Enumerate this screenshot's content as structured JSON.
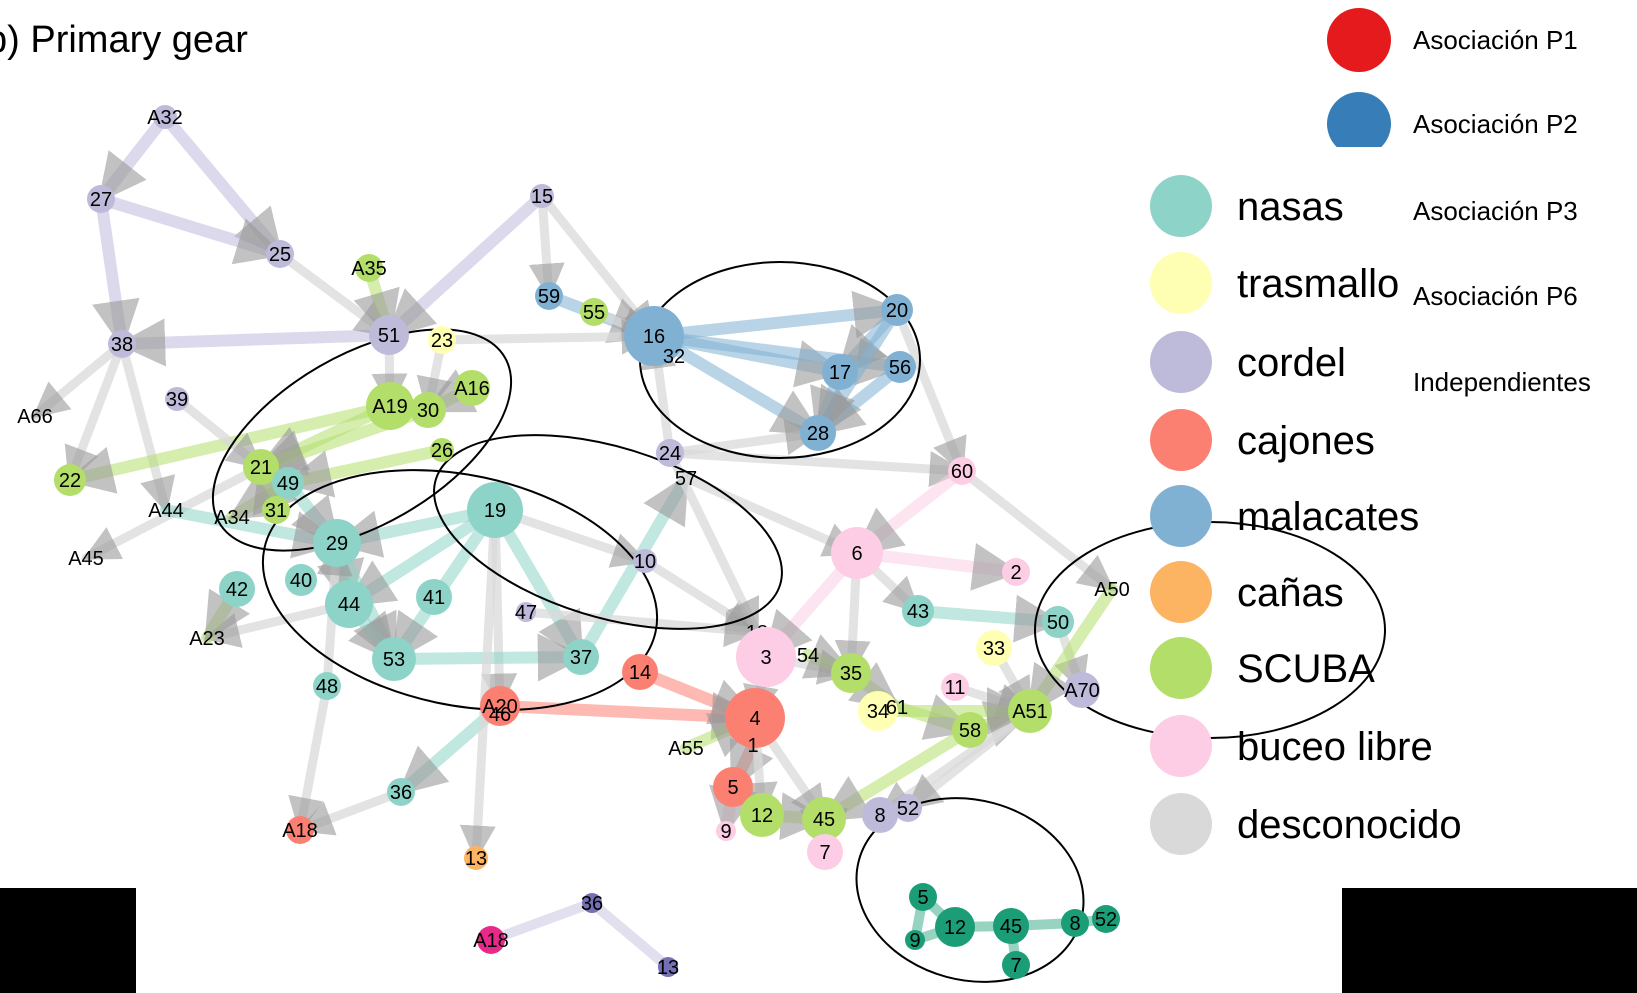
{
  "title": "b) Primary gear",
  "colors": {
    "nasas": "#8dd3c7",
    "trasmallo": "#ffffb3",
    "cordel": "#bebada",
    "cajones": "#fb8072",
    "malacates": "#80b1d3",
    "canas": "#fdb462",
    "scuba": "#b3de69",
    "buceo": "#fccde5",
    "desconocido": "#d9d9d9",
    "assocP1": "#e41a1c",
    "assocP2": "#377eb8",
    "darkgreen": "#1b9e77",
    "magenta": "#e7298a",
    "darkpurple": "#7570b3"
  },
  "assoc_legend": [
    {
      "label": "Asociación P1",
      "color": "#e41a1c"
    },
    {
      "label": "Asociación P2",
      "color": "#377eb8"
    },
    {
      "label": "Asociación P3"
    },
    {
      "label": "Asociación P6"
    },
    {
      "label": "Independientes"
    }
  ],
  "gear_legend": [
    {
      "label": "nasas",
      "color": "#8dd3c7"
    },
    {
      "label": "trasmallo",
      "color": "#ffffb3"
    },
    {
      "label": "cordel",
      "color": "#bebada"
    },
    {
      "label": "cajones",
      "color": "#fb8072"
    },
    {
      "label": "malacates",
      "color": "#80b1d3"
    },
    {
      "label": "cañas",
      "color": "#fdb462"
    },
    {
      "label": "SCUBA",
      "color": "#b3de69"
    },
    {
      "label": "buceo libre",
      "color": "#fccde5"
    },
    {
      "label": "desconocido",
      "color": "#d9d9d9"
    }
  ],
  "nodes": [
    {
      "id": "A32",
      "gear": "cordel"
    },
    {
      "id": "27",
      "gear": "cordel"
    },
    {
      "id": "25",
      "gear": "cordel"
    },
    {
      "id": "15",
      "gear": "cordel"
    },
    {
      "id": "A35",
      "gear": "scuba"
    },
    {
      "id": "59",
      "gear": "malacates"
    },
    {
      "id": "55",
      "gear": "scuba"
    },
    {
      "id": "38",
      "gear": "cordel"
    },
    {
      "id": "51",
      "gear": "cordel"
    },
    {
      "id": "23",
      "gear": "trasmallo"
    },
    {
      "id": "16",
      "gear": "malacates"
    },
    {
      "id": "32",
      "gear": "malacates"
    },
    {
      "id": "20",
      "gear": "malacates"
    },
    {
      "id": "17",
      "gear": "malacates"
    },
    {
      "id": "56",
      "gear": "malacates"
    },
    {
      "id": "28",
      "gear": "malacates"
    },
    {
      "id": "39",
      "gear": "cordel"
    },
    {
      "id": "A66",
      "gear": "desconocido"
    },
    {
      "id": "A19",
      "gear": "scuba"
    },
    {
      "id": "30",
      "gear": "scuba"
    },
    {
      "id": "A16",
      "gear": "scuba"
    },
    {
      "id": "26",
      "gear": "scuba"
    },
    {
      "id": "24",
      "gear": "cordel"
    },
    {
      "id": "57",
      "gear": "nasas"
    },
    {
      "id": "60",
      "gear": "buceo"
    },
    {
      "id": "22",
      "gear": "scuba"
    },
    {
      "id": "21",
      "gear": "scuba"
    },
    {
      "id": "49",
      "gear": "nasas"
    },
    {
      "id": "A44",
      "gear": "nasas"
    },
    {
      "id": "A34",
      "gear": "scuba"
    },
    {
      "id": "31",
      "gear": "scuba"
    },
    {
      "id": "19",
      "gear": "nasas"
    },
    {
      "id": "6",
      "gear": "buceo"
    },
    {
      "id": "A45",
      "gear": "trasmallo"
    },
    {
      "id": "29",
      "gear": "nasas"
    },
    {
      "id": "10",
      "gear": "cordel"
    },
    {
      "id": "2",
      "gear": "buceo"
    },
    {
      "id": "42",
      "gear": "nasas"
    },
    {
      "id": "40",
      "gear": "nasas"
    },
    {
      "id": "44",
      "gear": "nasas"
    },
    {
      "id": "41",
      "gear": "nasas"
    },
    {
      "id": "47",
      "gear": "cordel"
    },
    {
      "id": "43",
      "gear": "nasas"
    },
    {
      "id": "A50",
      "gear": "scuba"
    },
    {
      "id": "50",
      "gear": "nasas"
    },
    {
      "id": "A23",
      "gear": "scuba"
    },
    {
      "id": "18",
      "gear": "scuba"
    },
    {
      "id": "3",
      "gear": "buceo"
    },
    {
      "id": "54",
      "gear": "scuba"
    },
    {
      "id": "33",
      "gear": "trasmallo"
    },
    {
      "id": "53",
      "gear": "nasas"
    },
    {
      "id": "37",
      "gear": "nasas"
    },
    {
      "id": "14",
      "gear": "cajones"
    },
    {
      "id": "35",
      "gear": "scuba"
    },
    {
      "id": "11",
      "gear": "buceo"
    },
    {
      "id": "A70",
      "gear": "cordel"
    },
    {
      "id": "48",
      "gear": "nasas"
    },
    {
      "id": "A20",
      "gear": "cajones"
    },
    {
      "id": "46",
      "gear": "cajones"
    },
    {
      "id": "34",
      "gear": "trasmallo"
    },
    {
      "id": "61",
      "gear": "scuba"
    },
    {
      "id": "A51",
      "gear": "scuba"
    },
    {
      "id": "4",
      "gear": "cajones"
    },
    {
      "id": "58",
      "gear": "scuba"
    },
    {
      "id": "A55",
      "gear": "scuba"
    },
    {
      "id": "1",
      "gear": "cajones"
    },
    {
      "id": "36",
      "gear": "nasas"
    },
    {
      "id": "5",
      "gear": "cajones"
    },
    {
      "id": "8",
      "gear": "cordel"
    },
    {
      "id": "52",
      "gear": "cordel"
    },
    {
      "id": "A18",
      "gear": "cajones"
    },
    {
      "id": "12",
      "gear": "scuba"
    },
    {
      "id": "45",
      "gear": "scuba"
    },
    {
      "id": "9",
      "gear": "buceo"
    },
    {
      "id": "7",
      "gear": "buceo"
    },
    {
      "id": "13",
      "gear": "canas"
    },
    {
      "id": "36",
      "gear": "darkpurple"
    },
    {
      "id": "A18",
      "gear": "magenta"
    },
    {
      "id": "13",
      "gear": "darkpurple"
    },
    {
      "id": "5",
      "gear": "darkgreen"
    },
    {
      "id": "12",
      "gear": "darkgreen"
    },
    {
      "id": "45",
      "gear": "darkgreen"
    },
    {
      "id": "9",
      "gear": "darkgreen"
    },
    {
      "id": "8",
      "gear": "darkgreen"
    },
    {
      "id": "52",
      "gear": "darkgreen"
    },
    {
      "id": "7",
      "gear": "darkgreen"
    }
  ],
  "edges": [
    {
      "from": "A32",
      "to": "27",
      "gear": "cordel"
    },
    {
      "from": "A32",
      "to": "25",
      "gear": "cordel"
    },
    {
      "from": "27",
      "to": "25",
      "gear": "cordel"
    },
    {
      "from": "27",
      "to": "38",
      "gear": "cordel"
    },
    {
      "from": "51",
      "to": "38",
      "gear": "cordel"
    },
    {
      "from": "15",
      "to": "51",
      "gear": "cordel"
    },
    {
      "from": "15",
      "to": "59",
      "gear": "desconocido"
    },
    {
      "from": "15",
      "to": "16",
      "gear": "desconocido"
    },
    {
      "from": "25",
      "to": "51",
      "gear": "desconocido"
    },
    {
      "from": "A35",
      "to": "51",
      "gear": "scuba"
    },
    {
      "from": "59",
      "to": "16",
      "gear": "malacates"
    },
    {
      "from": "55",
      "to": "16",
      "gear": "desconocido"
    },
    {
      "from": "16",
      "to": "17",
      "gear": "malacates"
    },
    {
      "from": "16",
      "to": "20",
      "gear": "malacates"
    },
    {
      "from": "16",
      "to": "28",
      "gear": "malacates"
    },
    {
      "from": "16",
      "to": "56",
      "gear": "malacates"
    },
    {
      "from": "20",
      "to": "17",
      "gear": "malacates"
    },
    {
      "from": "20",
      "to": "28",
      "gear": "malacates"
    },
    {
      "from": "56",
      "to": "28",
      "gear": "malacates"
    },
    {
      "from": "20",
      "to": "60",
      "gear": "desconocido"
    },
    {
      "from": "17",
      "to": "28",
      "gear": "malacates"
    },
    {
      "from": "38",
      "to": "A66",
      "gear": "desconocido"
    },
    {
      "from": "38",
      "to": "22",
      "gear": "desconocido"
    },
    {
      "from": "38",
      "to": "A44",
      "gear": "desconocido"
    },
    {
      "from": "A19",
      "to": "22",
      "gear": "scuba"
    },
    {
      "from": "A19",
      "to": "21",
      "gear": "scuba"
    },
    {
      "from": "30",
      "to": "21",
      "gear": "scuba"
    },
    {
      "from": "A16",
      "to": "30",
      "gear": "scuba"
    },
    {
      "from": "39",
      "to": "21",
      "gear": "desconocido"
    },
    {
      "from": "51",
      "to": "A19",
      "gear": "desconocido"
    },
    {
      "from": "23",
      "to": "30",
      "gear": "desconocido"
    },
    {
      "from": "23",
      "to": "16",
      "gear": "desconocido"
    },
    {
      "from": "26",
      "to": "49",
      "gear": "scuba"
    },
    {
      "from": "21",
      "to": "A45",
      "gear": "desconocido"
    },
    {
      "from": "A44",
      "to": "29",
      "gear": "nasas"
    },
    {
      "from": "49",
      "to": "29",
      "gear": "nasas"
    },
    {
      "from": "19",
      "to": "29",
      "gear": "nasas"
    },
    {
      "from": "19",
      "to": "44",
      "gear": "nasas"
    },
    {
      "from": "19",
      "to": "53",
      "gear": "nasas"
    },
    {
      "from": "19",
      "to": "37",
      "gear": "nasas"
    },
    {
      "from": "19",
      "to": "10",
      "gear": "desconocido"
    },
    {
      "from": "19",
      "to": "A20",
      "gear": "desconocido"
    },
    {
      "from": "29",
      "to": "44",
      "gear": "nasas"
    },
    {
      "from": "29",
      "to": "53",
      "gear": "nasas"
    },
    {
      "from": "44",
      "to": "A23",
      "gear": "desconocido"
    },
    {
      "from": "42",
      "to": "A23",
      "gear": "scuba"
    },
    {
      "from": "44",
      "to": "53",
      "gear": "nasas"
    },
    {
      "from": "53",
      "to": "37",
      "gear": "nasas"
    },
    {
      "from": "37",
      "to": "57",
      "gear": "nasas"
    },
    {
      "from": "24",
      "to": "16",
      "gear": "desconocido"
    },
    {
      "from": "24",
      "to": "28",
      "gear": "desconocido"
    },
    {
      "from": "24",
      "to": "60",
      "gear": "desconocido"
    },
    {
      "from": "10",
      "to": "18",
      "gear": "desconocido"
    },
    {
      "from": "47",
      "to": "18",
      "gear": "desconocido"
    },
    {
      "from": "6",
      "to": "2",
      "gear": "buceo"
    },
    {
      "from": "6",
      "to": "3",
      "gear": "buceo"
    },
    {
      "from": "60",
      "to": "6",
      "gear": "buceo"
    },
    {
      "from": "60",
      "to": "A50",
      "gear": "desconocido"
    },
    {
      "from": "3",
      "to": "4",
      "gear": "desconocido"
    },
    {
      "from": "3",
      "to": "35",
      "gear": "desconocido"
    },
    {
      "from": "14",
      "to": "4",
      "gear": "cajones"
    },
    {
      "from": "A20",
      "to": "4",
      "gear": "cajones"
    },
    {
      "from": "4",
      "to": "1",
      "gear": "cajones"
    },
    {
      "from": "1",
      "to": "5",
      "gear": "cajones"
    },
    {
      "from": "4",
      "to": "12",
      "gear": "desconocido"
    },
    {
      "from": "4",
      "to": "45",
      "gear": "desconocido"
    },
    {
      "from": "35",
      "to": "61",
      "gear": "scuba"
    },
    {
      "from": "61",
      "to": "58",
      "gear": "scuba"
    },
    {
      "from": "58",
      "to": "A51",
      "gear": "scuba"
    },
    {
      "from": "43",
      "to": "50",
      "gear": "nasas"
    },
    {
      "from": "50",
      "to": "A70",
      "gear": "desconocido"
    },
    {
      "from": "33",
      "to": "A51",
      "gear": "desconocido"
    },
    {
      "from": "11",
      "to": "A51",
      "gear": "desconocido"
    },
    {
      "from": "A51",
      "to": "8",
      "gear": "desconocido"
    },
    {
      "from": "A51",
      "to": "52",
      "gear": "desconocido"
    },
    {
      "from": "58",
      "to": "45",
      "gear": "scuba"
    },
    {
      "from": "12",
      "to": "45",
      "gear": "scuba"
    },
    {
      "from": "45",
      "to": "7",
      "gear": "buceo"
    },
    {
      "from": "5",
      "to": "9",
      "gear": "buceo"
    },
    {
      "from": "48",
      "to": "A18",
      "gear": "desconocido"
    },
    {
      "from": "A20",
      "to": "36",
      "gear": "nasas"
    },
    {
      "from": "36",
      "to": "A18",
      "gear": "desconocido"
    },
    {
      "from": "19",
      "to": "13",
      "gear": "desconocido"
    },
    {
      "from": "48",
      "to": "29",
      "gear": "desconocido"
    },
    {
      "from": "A55",
      "to": "4",
      "gear": "scuba"
    },
    {
      "from": "54",
      "to": "35",
      "gear": "scuba"
    },
    {
      "from": "57",
      "to": "6",
      "gear": "desconocido"
    },
    {
      "from": "24",
      "to": "18",
      "gear": "desconocido"
    },
    {
      "from": "6",
      "to": "35",
      "gear": "desconocido"
    },
    {
      "from": "6",
      "to": "43",
      "gear": "desconocido"
    },
    {
      "from": "34",
      "to": "A51",
      "gear": "scuba"
    },
    {
      "from": "A50",
      "to": "A51",
      "gear": "scuba"
    },
    {
      "from": "49",
      "to": "A34",
      "gear": "scuba"
    },
    {
      "from": "31",
      "to": "21",
      "gear": "scuba"
    }
  ]
}
